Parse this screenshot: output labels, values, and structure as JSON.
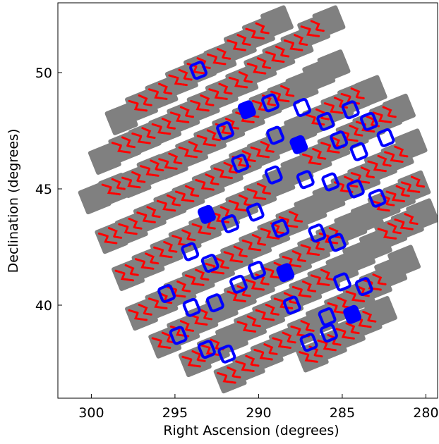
{
  "chart_data": {
    "type": "scatter",
    "title": "",
    "xlabel": "Right Ascension (degrees)",
    "ylabel": "Declination (degrees)",
    "xlim": [
      302.0,
      279.3
    ],
    "ylim": [
      36.0,
      53.0
    ],
    "x_ticks": [
      300,
      295,
      290,
      285,
      280
    ],
    "y_ticks": [
      40,
      45,
      50
    ],
    "x_tick_labels": [
      "300",
      "295",
      "290",
      "285",
      "280"
    ],
    "y_tick_labels": [
      "40",
      "45",
      "50"
    ],
    "grid": false,
    "legend": "none",
    "colors": {
      "coverage": "#808080",
      "primary": "#ff0000",
      "highlight": "#0000ff"
    },
    "series": [
      {
        "color": "#808080",
        "marker": "tile",
        "values": [
          [
            299.8,
            44.6
          ],
          [
            298.6,
            45.0
          ],
          [
            297.4,
            45.3
          ],
          [
            296.3,
            45.8
          ],
          [
            295.2,
            46.1
          ],
          [
            294.0,
            46.6
          ],
          [
            292.9,
            47.1
          ],
          [
            291.8,
            47.6
          ],
          [
            290.6,
            48.1
          ],
          [
            289.6,
            48.6
          ],
          [
            288.5,
            49.0
          ],
          [
            287.4,
            49.4
          ],
          [
            286.4,
            49.9
          ],
          [
            285.5,
            50.3
          ],
          [
            299.2,
            46.3
          ],
          [
            298.0,
            46.8
          ],
          [
            296.8,
            47.2
          ],
          [
            295.6,
            47.6
          ],
          [
            294.5,
            48.1
          ],
          [
            293.3,
            48.6
          ],
          [
            292.2,
            49.1
          ],
          [
            291.0,
            49.6
          ],
          [
            289.9,
            50.2
          ],
          [
            288.8,
            50.7
          ],
          [
            287.7,
            51.2
          ],
          [
            286.7,
            51.8
          ],
          [
            285.8,
            52.2
          ],
          [
            298.2,
            48.0
          ],
          [
            297.0,
            48.6
          ],
          [
            295.8,
            49.1
          ],
          [
            294.6,
            49.7
          ],
          [
            293.5,
            50.2
          ],
          [
            292.3,
            50.6
          ],
          [
            291.1,
            51.2
          ],
          [
            290.0,
            51.7
          ],
          [
            288.9,
            52.2
          ],
          [
            298.8,
            42.9
          ],
          [
            297.6,
            43.3
          ],
          [
            296.5,
            43.8
          ],
          [
            295.3,
            44.3
          ],
          [
            294.2,
            44.7
          ],
          [
            293.0,
            45.2
          ],
          [
            291.9,
            45.7
          ],
          [
            290.8,
            46.2
          ],
          [
            289.7,
            46.6
          ],
          [
            288.6,
            47.1
          ],
          [
            287.5,
            47.6
          ],
          [
            286.4,
            48.0
          ],
          [
            285.3,
            48.5
          ],
          [
            284.3,
            48.9
          ],
          [
            283.3,
            49.2
          ],
          [
            297.8,
            41.3
          ],
          [
            296.6,
            41.8
          ],
          [
            295.5,
            42.3
          ],
          [
            294.4,
            42.8
          ],
          [
            293.2,
            43.3
          ],
          [
            292.1,
            43.8
          ],
          [
            291.0,
            44.3
          ],
          [
            289.9,
            44.8
          ],
          [
            288.8,
            45.3
          ],
          [
            287.7,
            45.8
          ],
          [
            286.6,
            46.3
          ],
          [
            285.5,
            46.8
          ],
          [
            284.4,
            47.3
          ],
          [
            283.4,
            47.7
          ],
          [
            282.4,
            48.1
          ],
          [
            281.6,
            48.4
          ],
          [
            297.0,
            39.6
          ],
          [
            295.8,
            40.1
          ],
          [
            294.7,
            40.6
          ],
          [
            293.6,
            41.1
          ],
          [
            292.4,
            41.6
          ],
          [
            291.3,
            42.1
          ],
          [
            290.2,
            42.6
          ],
          [
            289.1,
            43.1
          ],
          [
            288.0,
            43.6
          ],
          [
            286.9,
            44.1
          ],
          [
            285.8,
            44.6
          ],
          [
            284.7,
            45.1
          ],
          [
            283.7,
            45.5
          ],
          [
            282.7,
            46.0
          ],
          [
            281.7,
            46.4
          ],
          [
            280.9,
            46.9
          ],
          [
            295.6,
            38.4
          ],
          [
            294.5,
            38.9
          ],
          [
            293.4,
            39.4
          ],
          [
            292.2,
            39.9
          ],
          [
            291.1,
            40.4
          ],
          [
            290.0,
            40.9
          ],
          [
            288.9,
            41.4
          ],
          [
            287.8,
            41.9
          ],
          [
            286.7,
            42.4
          ],
          [
            285.6,
            42.9
          ],
          [
            284.5,
            43.4
          ],
          [
            283.5,
            43.8
          ],
          [
            282.5,
            44.3
          ],
          [
            281.6,
            44.7
          ],
          [
            280.7,
            45.1
          ],
          [
            293.8,
            37.6
          ],
          [
            292.7,
            38.1
          ],
          [
            291.6,
            38.6
          ],
          [
            290.5,
            39.1
          ],
          [
            289.4,
            39.6
          ],
          [
            288.3,
            40.1
          ],
          [
            287.2,
            40.6
          ],
          [
            286.1,
            41.1
          ],
          [
            285.0,
            41.6
          ],
          [
            284.0,
            42.1
          ],
          [
            283.0,
            42.6
          ],
          [
            282.1,
            43.1
          ],
          [
            281.1,
            43.5
          ],
          [
            280.2,
            43.9
          ],
          [
            291.7,
            36.9
          ],
          [
            290.6,
            37.4
          ],
          [
            289.5,
            37.9
          ],
          [
            288.4,
            38.4
          ],
          [
            287.3,
            38.9
          ],
          [
            286.2,
            39.4
          ],
          [
            285.1,
            39.9
          ],
          [
            284.0,
            40.4
          ],
          [
            283.0,
            40.9
          ],
          [
            282.1,
            41.4
          ],
          [
            281.3,
            41.9
          ],
          [
            286.8,
            37.8
          ],
          [
            285.7,
            38.3
          ],
          [
            284.6,
            38.8
          ],
          [
            283.6,
            39.3
          ],
          [
            282.7,
            39.7
          ]
        ]
      },
      {
        "color": "#ff0000",
        "marker": "stroke",
        "values": [
          [
            298.6,
            45.0
          ],
          [
            297.4,
            45.3
          ],
          [
            296.3,
            45.8
          ],
          [
            295.2,
            46.1
          ],
          [
            294.0,
            46.6
          ],
          [
            292.9,
            47.1
          ],
          [
            291.8,
            47.6
          ],
          [
            290.6,
            48.1
          ],
          [
            289.6,
            48.6
          ],
          [
            288.5,
            49.0
          ],
          [
            298.0,
            46.8
          ],
          [
            296.8,
            47.2
          ],
          [
            295.6,
            47.6
          ],
          [
            294.5,
            48.1
          ],
          [
            293.3,
            48.6
          ],
          [
            292.2,
            49.1
          ],
          [
            291.0,
            49.6
          ],
          [
            289.9,
            50.2
          ],
          [
            288.8,
            50.7
          ],
          [
            287.7,
            51.2
          ],
          [
            286.7,
            51.8
          ],
          [
            297.0,
            48.6
          ],
          [
            295.8,
            49.1
          ],
          [
            294.6,
            49.7
          ],
          [
            293.5,
            50.2
          ],
          [
            292.3,
            50.6
          ],
          [
            291.1,
            51.2
          ],
          [
            290.0,
            51.7
          ],
          [
            298.8,
            42.9
          ],
          [
            297.6,
            43.3
          ],
          [
            296.5,
            43.8
          ],
          [
            295.3,
            44.3
          ],
          [
            294.2,
            44.7
          ],
          [
            293.0,
            45.2
          ],
          [
            291.9,
            45.7
          ],
          [
            290.8,
            46.2
          ],
          [
            289.7,
            46.6
          ],
          [
            286.4,
            48.0
          ],
          [
            285.3,
            48.5
          ],
          [
            284.3,
            48.9
          ],
          [
            297.8,
            41.3
          ],
          [
            296.6,
            41.8
          ],
          [
            295.5,
            42.3
          ],
          [
            294.4,
            42.8
          ],
          [
            293.2,
            43.3
          ],
          [
            292.1,
            43.8
          ],
          [
            291.0,
            44.3
          ],
          [
            289.9,
            44.8
          ],
          [
            286.6,
            46.3
          ],
          [
            285.5,
            46.8
          ],
          [
            284.4,
            47.3
          ],
          [
            283.4,
            47.7
          ],
          [
            282.4,
            48.1
          ],
          [
            297.0,
            39.6
          ],
          [
            295.8,
            40.1
          ],
          [
            294.7,
            40.6
          ],
          [
            293.6,
            41.1
          ],
          [
            292.4,
            41.6
          ],
          [
            291.3,
            42.1
          ],
          [
            290.2,
            42.6
          ],
          [
            289.1,
            43.1
          ],
          [
            288.0,
            43.6
          ],
          [
            284.7,
            45.1
          ],
          [
            283.7,
            45.5
          ],
          [
            282.7,
            46.0
          ],
          [
            281.7,
            46.4
          ],
          [
            295.6,
            38.4
          ],
          [
            294.5,
            38.9
          ],
          [
            293.4,
            39.4
          ],
          [
            291.1,
            40.4
          ],
          [
            290.0,
            40.9
          ],
          [
            288.9,
            41.4
          ],
          [
            287.8,
            41.9
          ],
          [
            286.7,
            42.4
          ],
          [
            285.6,
            42.9
          ],
          [
            282.5,
            44.3
          ],
          [
            281.6,
            44.7
          ],
          [
            280.7,
            45.1
          ],
          [
            293.8,
            37.6
          ],
          [
            292.7,
            38.1
          ],
          [
            290.5,
            39.1
          ],
          [
            289.4,
            39.6
          ],
          [
            288.3,
            40.1
          ],
          [
            287.2,
            40.6
          ],
          [
            286.1,
            41.1
          ],
          [
            282.1,
            43.1
          ],
          [
            281.1,
            43.5
          ],
          [
            291.7,
            36.9
          ],
          [
            290.6,
            37.4
          ],
          [
            289.5,
            37.9
          ],
          [
            288.4,
            38.4
          ],
          [
            287.3,
            38.9
          ],
          [
            285.1,
            39.9
          ],
          [
            284.0,
            40.4
          ],
          [
            283.0,
            40.9
          ],
          [
            286.8,
            37.8
          ],
          [
            285.7,
            38.3
          ],
          [
            284.6,
            38.8
          ],
          [
            283.6,
            39.3
          ]
        ]
      },
      {
        "color": "#0000ff",
        "marker": "outline",
        "values": [
          [
            293.6,
            50.1
          ],
          [
            290.7,
            48.4
          ],
          [
            289.3,
            48.7
          ],
          [
            287.4,
            48.5
          ],
          [
            286.0,
            47.9
          ],
          [
            284.5,
            48.4
          ],
          [
            283.4,
            47.9
          ],
          [
            282.4,
            47.2
          ],
          [
            292.0,
            47.5
          ],
          [
            289.0,
            47.3
          ],
          [
            287.6,
            46.9
          ],
          [
            285.2,
            47.1
          ],
          [
            284.0,
            46.6
          ],
          [
            291.1,
            46.1
          ],
          [
            289.1,
            45.6
          ],
          [
            287.2,
            45.4
          ],
          [
            285.7,
            45.3
          ],
          [
            284.2,
            45.0
          ],
          [
            282.9,
            44.6
          ],
          [
            293.1,
            43.9
          ],
          [
            291.7,
            43.5
          ],
          [
            290.2,
            44.0
          ],
          [
            288.7,
            43.3
          ],
          [
            286.5,
            43.1
          ],
          [
            285.3,
            42.7
          ],
          [
            294.1,
            42.3
          ],
          [
            292.9,
            41.8
          ],
          [
            290.1,
            41.5
          ],
          [
            288.4,
            41.4
          ],
          [
            285.0,
            41.0
          ],
          [
            283.7,
            40.8
          ],
          [
            295.5,
            40.5
          ],
          [
            294.0,
            39.9
          ],
          [
            292.6,
            40.1
          ],
          [
            291.2,
            40.9
          ],
          [
            288.0,
            40.0
          ],
          [
            285.9,
            39.5
          ],
          [
            284.4,
            39.6
          ],
          [
            294.8,
            38.7
          ],
          [
            293.1,
            38.1
          ],
          [
            291.9,
            37.9
          ],
          [
            287.0,
            38.4
          ],
          [
            285.8,
            38.8
          ]
        ]
      }
    ]
  }
}
